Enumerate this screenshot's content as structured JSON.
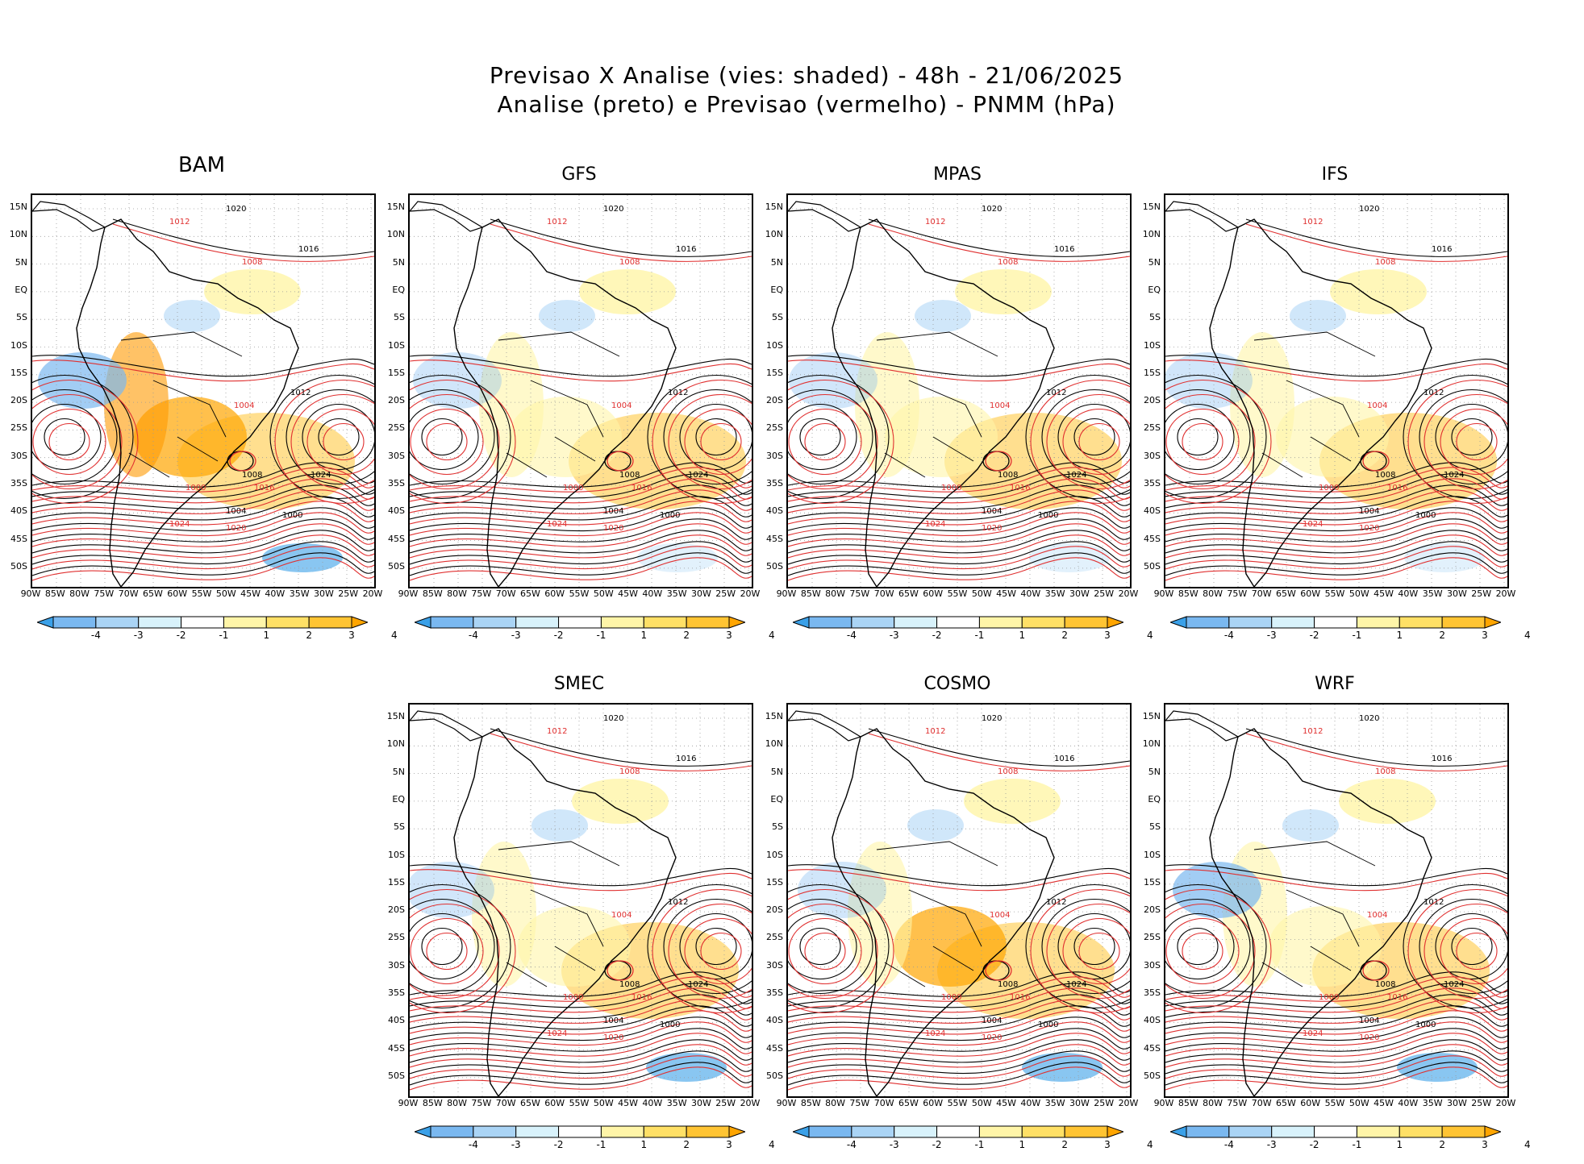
{
  "title": {
    "line1": "Previsao X Analise (vies: shaded) - 48h - 21/06/2025",
    "line2": "Analise (preto) e Previsao (vermelho) - PNMM (hPa)"
  },
  "panels": [
    {
      "name": "BAM"
    },
    {
      "name": "GFS"
    },
    {
      "name": "MPAS"
    },
    {
      "name": "IFS"
    },
    {
      "name": "SMEC"
    },
    {
      "name": "COSMO"
    },
    {
      "name": "WRF"
    }
  ],
  "lat_labels": [
    "15N",
    "10N",
    "5N",
    "EQ",
    "5S",
    "10S",
    "15S",
    "20S",
    "25S",
    "30S",
    "35S",
    "40S",
    "45S",
    "50S"
  ],
  "lon_labels": [
    "90W",
    "85W",
    "80W",
    "75W",
    "70W",
    "65W",
    "60W",
    "55W",
    "50W",
    "45W",
    "40W",
    "35W",
    "30W",
    "25W",
    "20W"
  ],
  "colorbar": {
    "ticks": [
      "-4",
      "-3",
      "-2",
      "-1",
      "1",
      "2",
      "3",
      "4"
    ],
    "colors": [
      "#3aa0e8",
      "#7ab8f0",
      "#aad4f5",
      "#d8f2fb",
      "#ffffff",
      "#fff5a8",
      "#ffe066",
      "#ffc433",
      "#ffa500"
    ]
  },
  "contour_labels": {
    "analysis": [
      "1020",
      "1016",
      "1012",
      "1008",
      "1004",
      "1000",
      "1024"
    ],
    "forecast": [
      "1020",
      "1016",
      "1012",
      "1008",
      "1004",
      "1000",
      "1024"
    ]
  },
  "colors": {
    "analysis_contour": "#000000",
    "forecast_contour": "#e03030",
    "grid": "#9a9a9a",
    "positive_bias": "#ffc433",
    "negative_bias": "#7ab8f0"
  }
}
